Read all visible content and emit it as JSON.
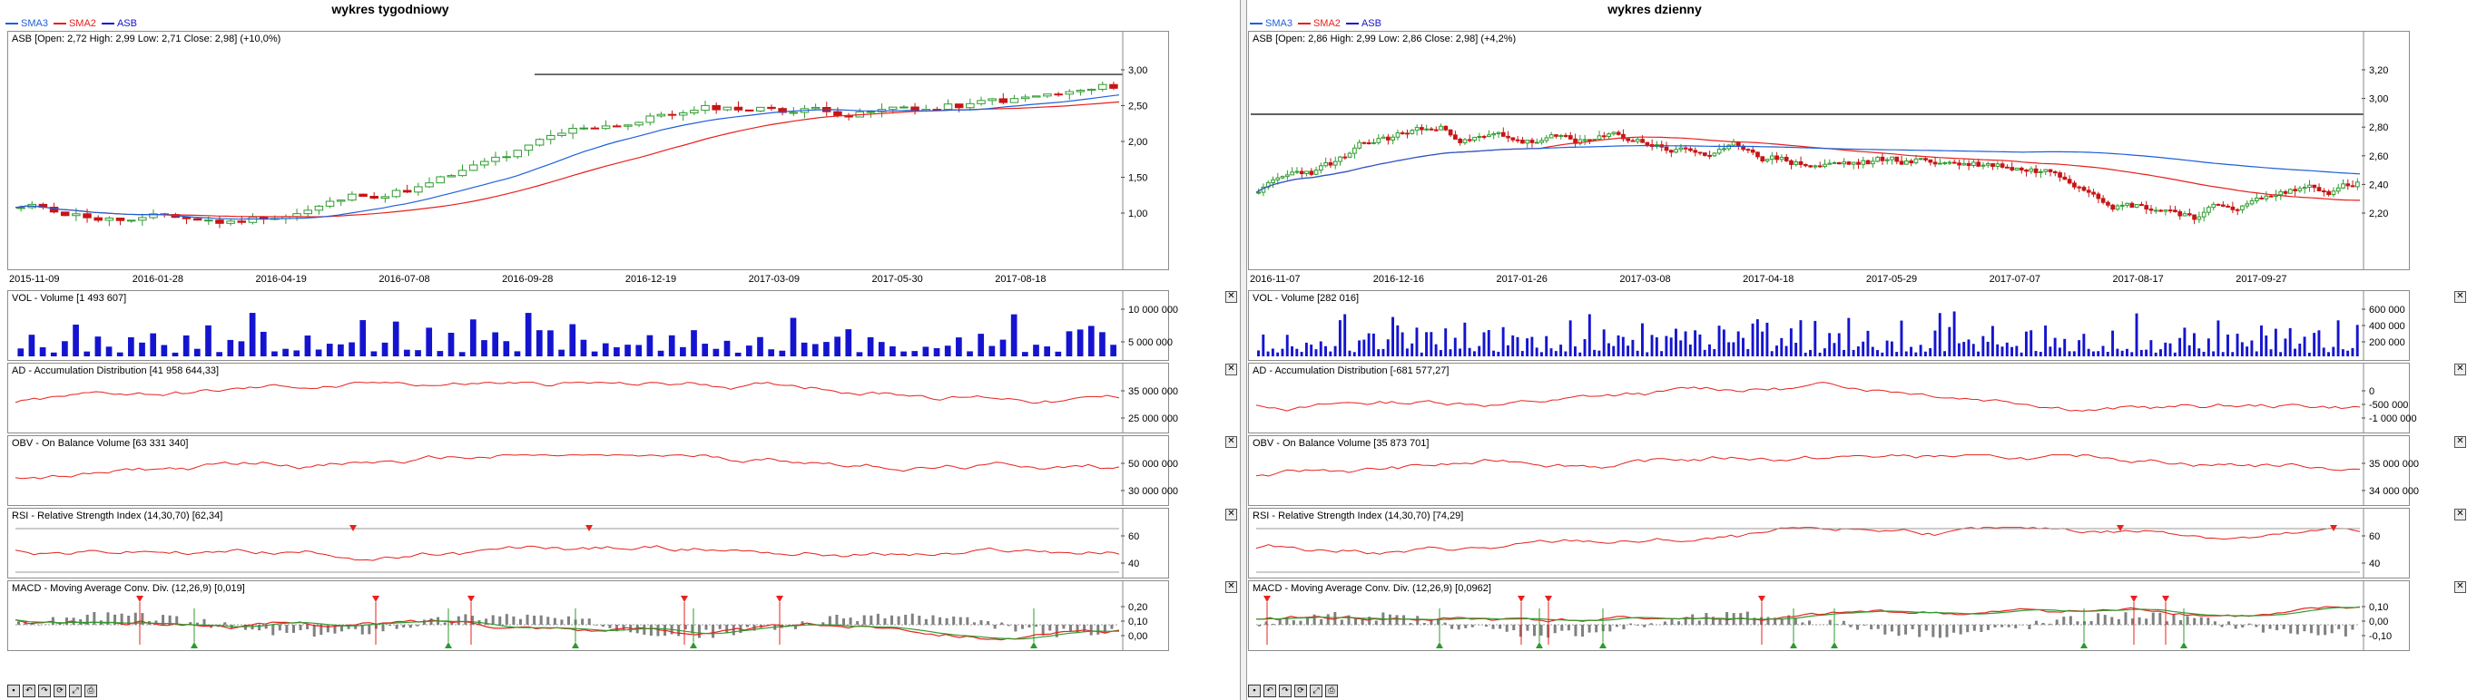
{
  "left": {
    "title": "wykres tygodniowy",
    "legend": [
      {
        "label": "SMA3",
        "color": "#1f5fd8"
      },
      {
        "label": "SMA2",
        "color": "#e8201c"
      },
      {
        "label": "ASB",
        "color": "#1414d0"
      }
    ],
    "price_label": "ASB [Open: 2,72  High: 2,99  Low: 2,71  Close: 2,98] (+10,0%)",
    "price_axis": [
      "3,00",
      "2,50",
      "2,00",
      "1,50",
      "1,00"
    ],
    "dates": [
      "2015-11-09",
      "2016-01-28",
      "2016-04-19",
      "2016-07-08",
      "2016-09-28",
      "2016-12-19",
      "2017-03-09",
      "2017-05-30",
      "2017-08-18"
    ],
    "vol_label": "VOL - Volume [1 493 607]",
    "vol_axis": [
      "10 000 000",
      "5 000 000"
    ],
    "ad_label": "AD - Accumulation Distribution [41 958 644,33]",
    "ad_axis": [
      "35 000 000",
      "25 000 000"
    ],
    "obv_label": "OBV - On Balance Volume [63 331 340]",
    "obv_axis": [
      "50 000 000",
      "30 000 000"
    ],
    "rsi_label": "RSI - Relative Strength Index (14,30,70) [62,34]",
    "rsi_axis": [
      "60",
      "40"
    ],
    "macd_label": "MACD - Moving Average Conv. Div. (12,26,9) [0,019]",
    "macd_axis": [
      "0,20",
      "0,10",
      "0,00"
    ]
  },
  "right": {
    "title": "wykres dzienny",
    "legend": [
      {
        "label": "SMA3",
        "color": "#1f5fd8"
      },
      {
        "label": "SMA2",
        "color": "#e8201c"
      },
      {
        "label": "ASB",
        "color": "#1414d0"
      }
    ],
    "price_label": "ASB [Open: 2,86  High: 2,99  Low: 2,86  Close: 2,98] (+4,2%)",
    "price_axis": [
      "3,20",
      "3,00",
      "2,80",
      "2,60",
      "2,40",
      "2,20"
    ],
    "dates": [
      "2016-11-07",
      "2016-12-16",
      "2017-01-26",
      "2017-03-08",
      "2017-04-18",
      "2017-05-29",
      "2017-07-07",
      "2017-08-17",
      "2017-09-27"
    ],
    "vol_label": "VOL - Volume [282 016]",
    "vol_axis": [
      "600 000",
      "400 000",
      "200 000"
    ],
    "ad_label": "AD - Accumulation Distribution [-681 577,27]",
    "ad_axis": [
      "0",
      "-500 000",
      "-1 000 000"
    ],
    "obv_label": "OBV - On Balance Volume [35 873 701]",
    "obv_axis": [
      "35 000 000",
      "34 000 000"
    ],
    "rsi_label": "RSI - Relative Strength Index (14,30,70) [74,29]",
    "rsi_axis": [
      "60",
      "40"
    ],
    "macd_label": "MACD - Moving Average Conv. Div. (12,26,9) [0,0962]",
    "macd_axis": [
      "0,10",
      "0,00",
      "-0,10"
    ]
  },
  "colors": {
    "up": "#2e9b2e",
    "down": "#c81414",
    "volume": "#1414d0",
    "line": "#e8201c",
    "sma_blue": "#1f5fd8",
    "macd_signal": "#2e9b2e",
    "histogram": "#808080"
  }
}
